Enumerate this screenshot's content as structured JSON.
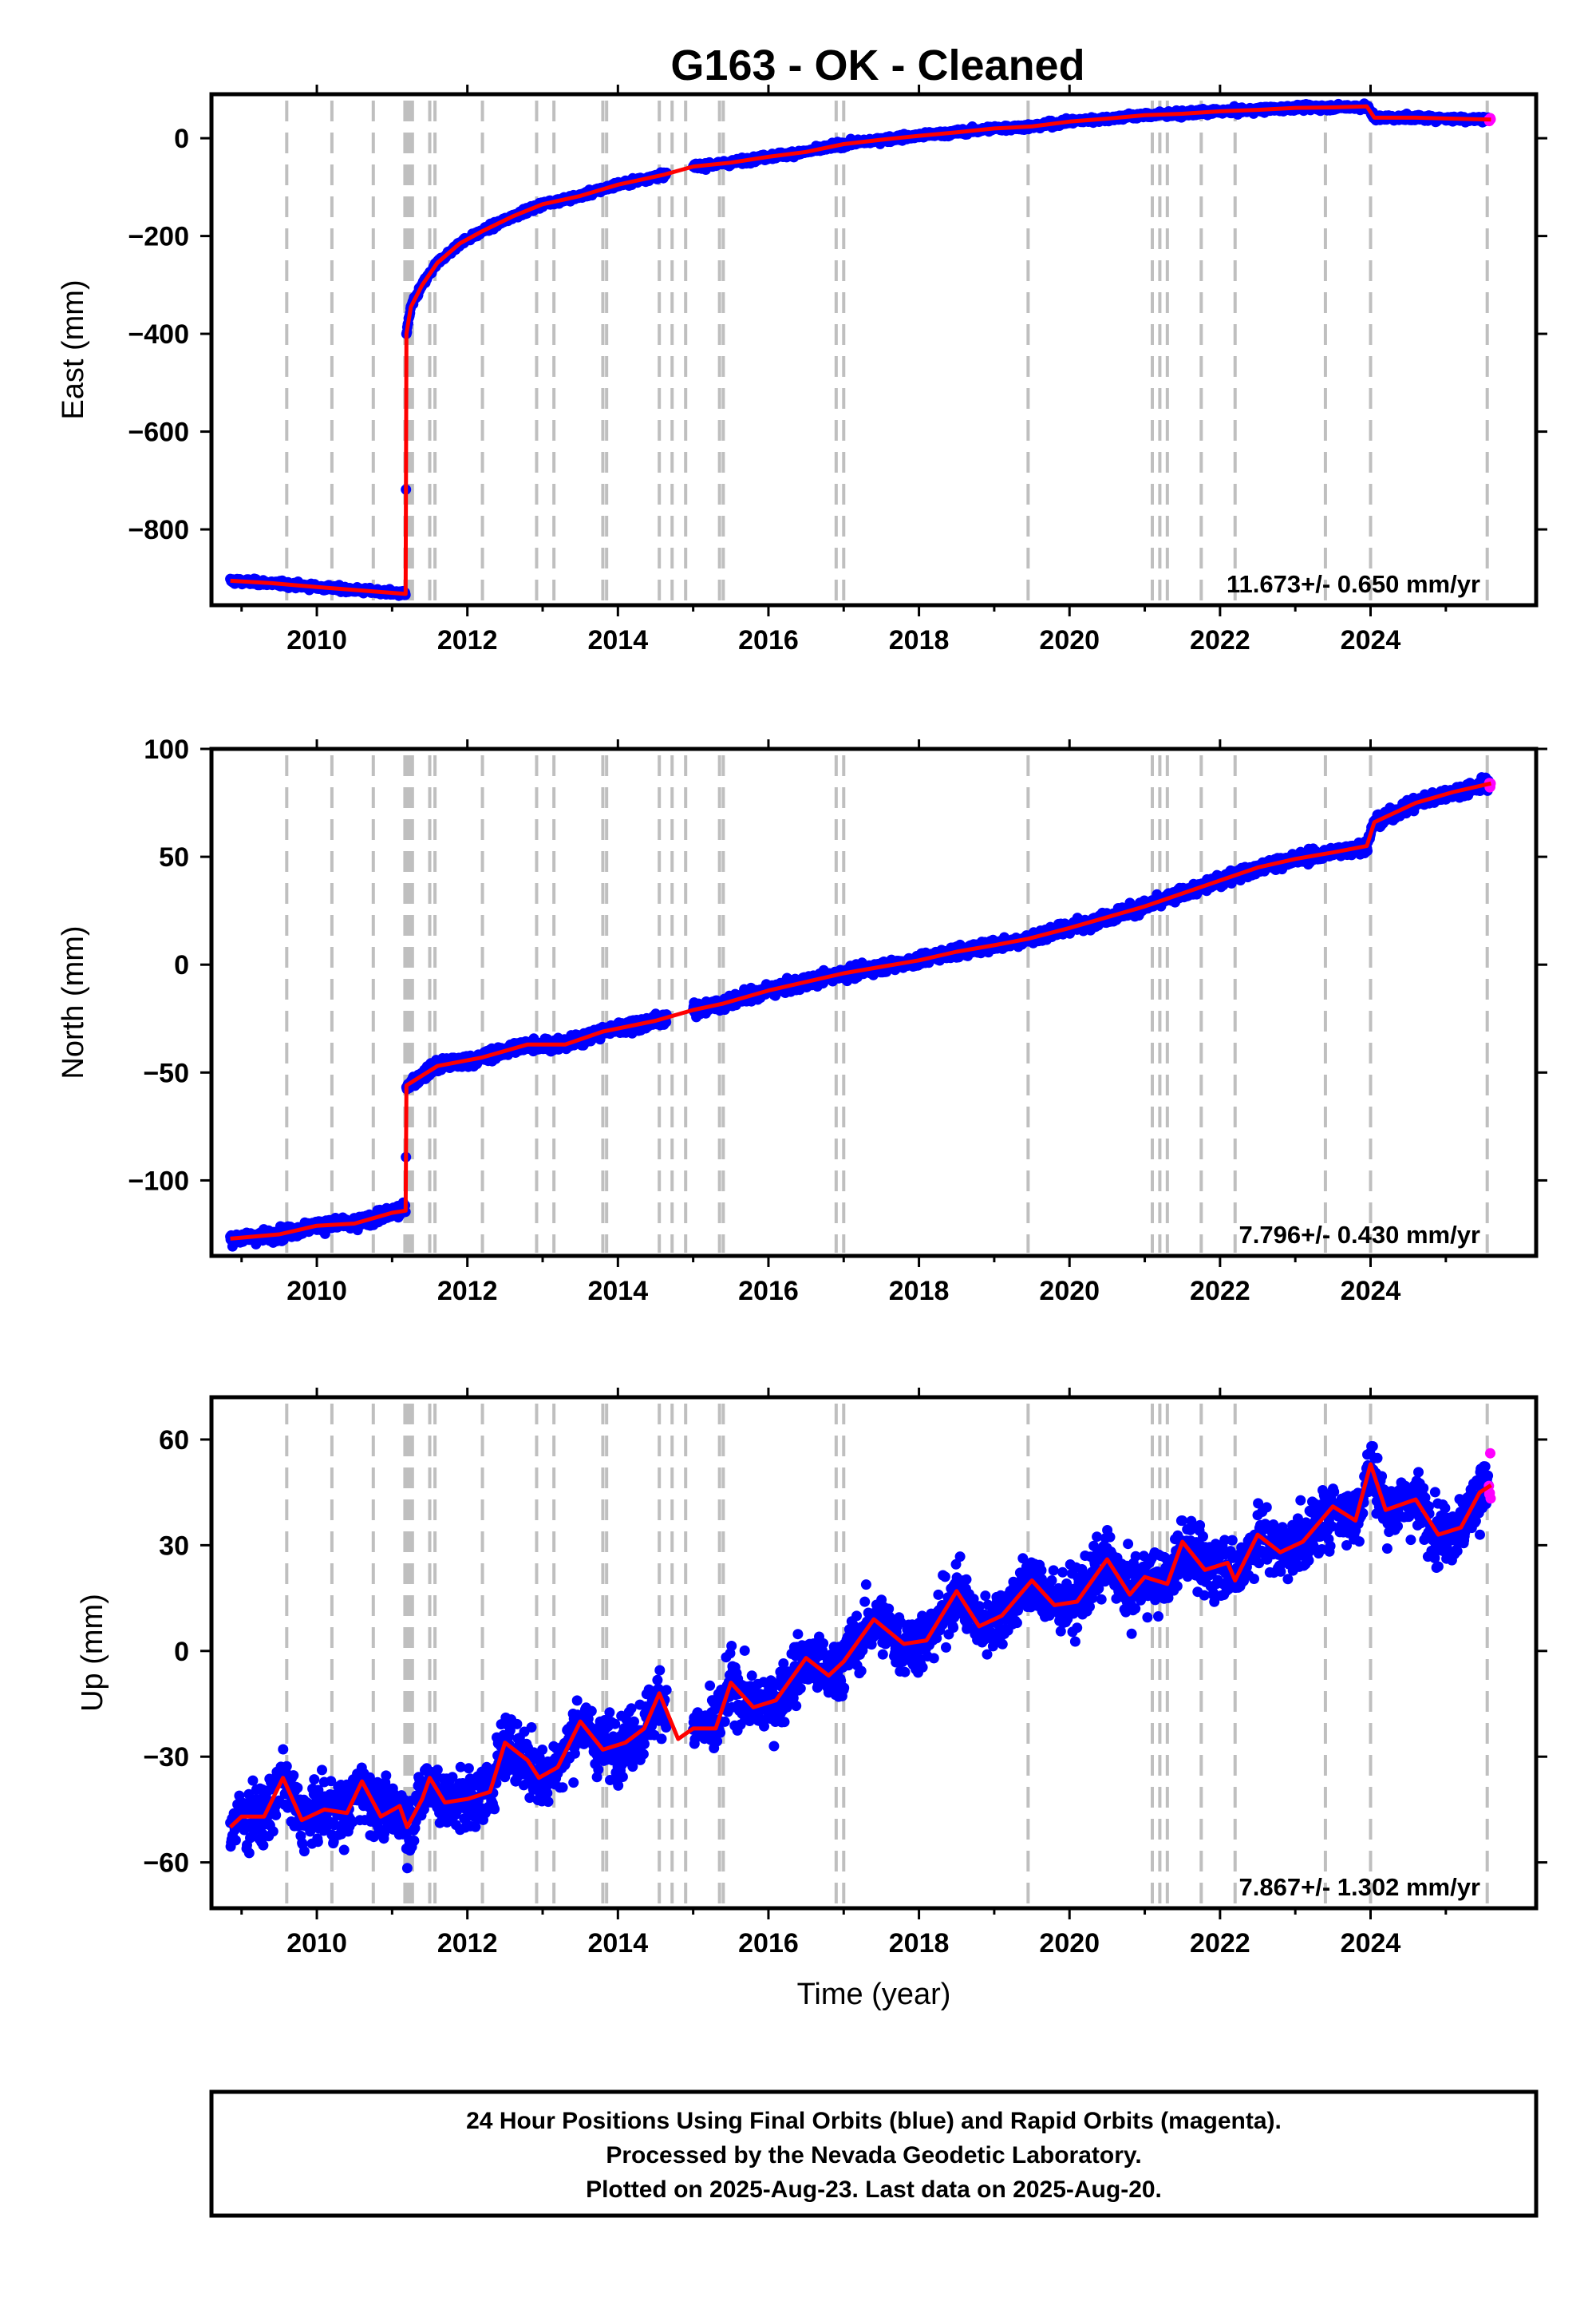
{
  "title": "G163  - OK - Cleaned",
  "colors": {
    "final_orbits": "#0000ff",
    "rapid_orbits": "#ff00ff",
    "model": "#ff0000",
    "event_lines": "#bfbfbf",
    "frame": "#000000"
  },
  "chart_data": [
    {
      "type": "scatter",
      "name": "east",
      "ylabel": "East (mm)",
      "xlim": [
        2008.6,
        2026.2
      ],
      "ylim": [
        -955,
        90
      ],
      "yticks": [
        0,
        -200,
        -400,
        -600,
        -800
      ],
      "xticks": [
        2010,
        2012,
        2014,
        2016,
        2018,
        2020,
        2022,
        2024
      ],
      "rate_text": "11.673+/- 0.650 mm/yr",
      "event_lines_years": [
        2009.6,
        2010.2,
        2010.75,
        2011.17,
        2011.2,
        2011.23,
        2011.27,
        2011.5,
        2011.57,
        2012.2,
        2012.92,
        2013.15,
        2013.8,
        2013.85,
        2014.55,
        2014.72,
        2014.9,
        2015.35,
        2015.4,
        2016.9,
        2017.0,
        2019.45,
        2021.1,
        2021.2,
        2021.3,
        2021.75,
        2022.2,
        2023.4,
        2024.0,
        2025.55
      ],
      "model_nodes": [
        [
          2008.85,
          -905
        ],
        [
          2009.4,
          -910
        ],
        [
          2010.0,
          -918
        ],
        [
          2010.6,
          -925
        ],
        [
          2011.18,
          -932
        ],
        [
          2011.19,
          -400
        ],
        [
          2011.25,
          -345
        ],
        [
          2011.4,
          -300
        ],
        [
          2011.6,
          -255
        ],
        [
          2011.9,
          -215
        ],
        [
          2012.2,
          -190
        ],
        [
          2012.6,
          -160
        ],
        [
          2013.0,
          -135
        ],
        [
          2013.5,
          -118
        ],
        [
          2014.0,
          -95
        ],
        [
          2014.6,
          -75
        ],
        [
          2015.0,
          -58
        ],
        [
          2015.5,
          -50
        ],
        [
          2016.0,
          -38
        ],
        [
          2016.5,
          -28
        ],
        [
          2017.0,
          -12
        ],
        [
          2017.5,
          -3
        ],
        [
          2018.0,
          5
        ],
        [
          2018.5,
          12
        ],
        [
          2019.0,
          20
        ],
        [
          2019.5,
          24
        ],
        [
          2020.0,
          34
        ],
        [
          2020.5,
          40
        ],
        [
          2021.0,
          47
        ],
        [
          2021.5,
          50
        ],
        [
          2022.0,
          55
        ],
        [
          2022.5,
          58
        ],
        [
          2023.0,
          62
        ],
        [
          2023.5,
          63
        ],
        [
          2023.95,
          65
        ],
        [
          2024.05,
          42
        ],
        [
          2024.6,
          42
        ],
        [
          2025.1,
          40
        ],
        [
          2025.6,
          38
        ]
      ],
      "scatter_noise_mm": 4,
      "rapid_start_year": 2025.45
    },
    {
      "type": "scatter",
      "name": "north",
      "ylabel": "North (mm)",
      "xlim": [
        2008.6,
        2026.2
      ],
      "ylim": [
        -135,
        100
      ],
      "yticks": [
        100,
        50,
        0,
        -50,
        -100
      ],
      "xticks": [
        2010,
        2012,
        2014,
        2016,
        2018,
        2020,
        2022,
        2024
      ],
      "rate_text": "7.796+/- 0.430 mm/yr",
      "event_lines_years": [
        2009.6,
        2010.2,
        2010.75,
        2011.17,
        2011.2,
        2011.23,
        2011.27,
        2011.5,
        2011.57,
        2012.2,
        2012.92,
        2013.15,
        2013.8,
        2013.85,
        2014.55,
        2014.72,
        2014.9,
        2015.35,
        2015.4,
        2016.9,
        2017.0,
        2019.45,
        2021.1,
        2021.2,
        2021.3,
        2021.75,
        2022.2,
        2023.4,
        2024.0,
        2025.55
      ],
      "model_nodes": [
        [
          2008.85,
          -127
        ],
        [
          2009.5,
          -125
        ],
        [
          2010.0,
          -121
        ],
        [
          2010.5,
          -120
        ],
        [
          2011.0,
          -115
        ],
        [
          2011.18,
          -114
        ],
        [
          2011.19,
          -56
        ],
        [
          2011.6,
          -47
        ],
        [
          2012.2,
          -43
        ],
        [
          2012.8,
          -37
        ],
        [
          2013.3,
          -37
        ],
        [
          2013.8,
          -31
        ],
        [
          2014.5,
          -26
        ],
        [
          2015.0,
          -21
        ],
        [
          2015.4,
          -18
        ],
        [
          2016.0,
          -12
        ],
        [
          2016.5,
          -8
        ],
        [
          2017.0,
          -4
        ],
        [
          2017.5,
          -1
        ],
        [
          2018.0,
          2
        ],
        [
          2018.5,
          6
        ],
        [
          2019.0,
          9
        ],
        [
          2019.45,
          12
        ],
        [
          2020.0,
          17
        ],
        [
          2020.5,
          22
        ],
        [
          2021.0,
          27
        ],
        [
          2021.5,
          33
        ],
        [
          2022.0,
          39
        ],
        [
          2022.5,
          45
        ],
        [
          2023.0,
          49
        ],
        [
          2023.5,
          52
        ],
        [
          2023.95,
          55
        ],
        [
          2024.05,
          66
        ],
        [
          2024.6,
          75
        ],
        [
          2025.1,
          80
        ],
        [
          2025.6,
          84
        ]
      ],
      "scatter_noise_mm": 2,
      "rapid_start_year": 2025.45
    },
    {
      "type": "scatter",
      "name": "up",
      "ylabel": "Up (mm)",
      "xlim": [
        2008.6,
        2026.2
      ],
      "ylim": [
        -73,
        72
      ],
      "yticks": [
        60,
        30,
        0,
        -30,
        -60
      ],
      "xticks": [
        2010,
        2012,
        2014,
        2016,
        2018,
        2020,
        2022,
        2024
      ],
      "xlabel": "Time (year)",
      "rate_text": "7.867+/- 1.302 mm/yr",
      "event_lines_years": [
        2009.6,
        2010.2,
        2010.75,
        2011.17,
        2011.2,
        2011.23,
        2011.27,
        2011.5,
        2011.57,
        2012.2,
        2012.92,
        2013.15,
        2013.8,
        2013.85,
        2014.55,
        2014.72,
        2014.9,
        2015.35,
        2015.4,
        2016.9,
        2017.0,
        2019.45,
        2021.1,
        2021.2,
        2021.3,
        2021.75,
        2022.2,
        2023.4,
        2024.0,
        2025.55
      ],
      "model_nodes": [
        [
          2008.85,
          -50
        ],
        [
          2009.0,
          -47
        ],
        [
          2009.3,
          -47
        ],
        [
          2009.55,
          -36
        ],
        [
          2009.8,
          -48
        ],
        [
          2010.1,
          -45
        ],
        [
          2010.4,
          -46
        ],
        [
          2010.6,
          -37
        ],
        [
          2010.85,
          -47
        ],
        [
          2011.1,
          -44
        ],
        [
          2011.2,
          -50
        ],
        [
          2011.4,
          -42
        ],
        [
          2011.5,
          -36
        ],
        [
          2011.7,
          -43
        ],
        [
          2012.0,
          -42
        ],
        [
          2012.3,
          -40
        ],
        [
          2012.5,
          -26
        ],
        [
          2012.8,
          -31
        ],
        [
          2012.95,
          -36
        ],
        [
          2013.2,
          -33
        ],
        [
          2013.5,
          -20
        ],
        [
          2013.8,
          -28
        ],
        [
          2014.1,
          -26
        ],
        [
          2014.35,
          -22
        ],
        [
          2014.55,
          -12
        ],
        [
          2014.8,
          -25
        ],
        [
          2015.0,
          -22
        ],
        [
          2015.3,
          -22
        ],
        [
          2015.5,
          -9
        ],
        [
          2015.8,
          -16
        ],
        [
          2016.1,
          -14
        ],
        [
          2016.5,
          -2
        ],
        [
          2016.8,
          -7
        ],
        [
          2017.0,
          -3
        ],
        [
          2017.4,
          9
        ],
        [
          2017.8,
          2
        ],
        [
          2018.1,
          3
        ],
        [
          2018.5,
          17
        ],
        [
          2018.8,
          7
        ],
        [
          2019.1,
          10
        ],
        [
          2019.5,
          20
        ],
        [
          2019.8,
          13
        ],
        [
          2020.1,
          14
        ],
        [
          2020.5,
          26
        ],
        [
          2020.8,
          16
        ],
        [
          2021.0,
          21
        ],
        [
          2021.3,
          19
        ],
        [
          2021.5,
          31
        ],
        [
          2021.8,
          23
        ],
        [
          2022.1,
          25
        ],
        [
          2022.2,
          20
        ],
        [
          2022.5,
          33
        ],
        [
          2022.8,
          28
        ],
        [
          2023.1,
          31
        ],
        [
          2023.5,
          41
        ],
        [
          2023.8,
          37
        ],
        [
          2024.0,
          53
        ],
        [
          2024.2,
          40
        ],
        [
          2024.6,
          43
        ],
        [
          2024.9,
          33
        ],
        [
          2025.2,
          35
        ],
        [
          2025.45,
          45
        ],
        [
          2025.6,
          47
        ]
      ],
      "scatter_noise_mm": 6,
      "rapid_start_year": 2025.45
    }
  ],
  "footer_note": {
    "line1": "24 Hour Positions Using Final Orbits (blue) and Rapid Orbits (magenta).",
    "line2": "Processed by the Nevada Geodetic Laboratory.",
    "line3": "Plotted on 2025-Aug-23. Last data on 2025-Aug-20."
  }
}
